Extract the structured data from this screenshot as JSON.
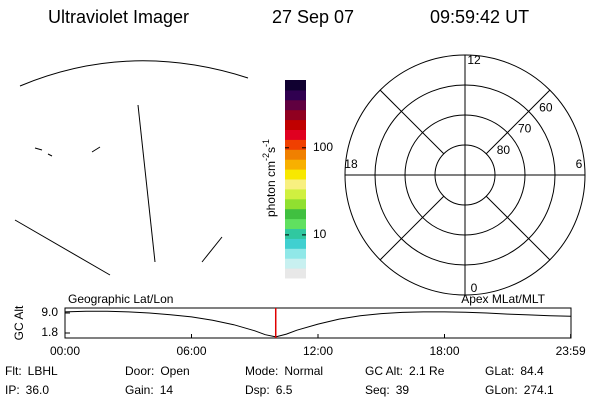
{
  "header": {
    "title": "Ultraviolet Imager",
    "date": "27 Sep 07",
    "time": "09:59:42 UT"
  },
  "chart_data": [
    {
      "type": "colorbar",
      "colors": [
        "#e8e8e8",
        "#c8f0f0",
        "#90e8e8",
        "#40d0d0",
        "#30c8a0",
        "#60e060",
        "#40c040",
        "#90e030",
        "#d0f040",
        "#f8f080",
        "#f8e800",
        "#f8b000",
        "#f08000",
        "#f04000",
        "#e00020",
        "#c00000",
        "#900020",
        "#600040",
        "#300050",
        "#100030"
      ],
      "log_scale": true,
      "ylim": [
        3.2,
        600
      ],
      "yticks": [
        10,
        100
      ],
      "ylabel": {
        "base": "photon cm",
        "exp1": "-2",
        "unit2": "s",
        "exp2": "-1"
      }
    },
    {
      "type": "polar",
      "rlim": [
        90,
        50
      ],
      "rticks": [
        80,
        70,
        60
      ],
      "theta_ticks": [
        0,
        6,
        12,
        18
      ]
    },
    {
      "type": "line",
      "left_label": "Geographic Lat/Lon",
      "right_label": "Apex MLat/MLT",
      "ylabel": "GC Alt",
      "x": [
        0,
        1,
        2,
        3,
        4,
        5,
        6,
        7,
        8,
        9,
        9.5,
        10,
        10.5,
        11,
        12,
        13,
        14,
        15,
        16,
        17,
        18,
        19,
        20,
        21,
        22,
        23,
        24
      ],
      "values": [
        9.4,
        9.6,
        9.6,
        9.4,
        9.0,
        8.4,
        7.6,
        6.4,
        4.8,
        2.6,
        1.2,
        0.4,
        1.4,
        2.8,
        5.0,
        6.8,
        8.0,
        8.8,
        9.2,
        9.4,
        9.4,
        9.3,
        9.0,
        8.6,
        8.3,
        8.0,
        7.8
      ],
      "color": "#000000",
      "xlim": [
        0,
        24
      ],
      "xticks": [
        {
          "value": 0,
          "label": "00:00"
        },
        {
          "value": 6,
          "label": "06:00"
        },
        {
          "value": 12,
          "label": "12:00"
        },
        {
          "value": 18,
          "label": "18:00"
        },
        {
          "value": 23.983,
          "label": "23:59"
        }
      ],
      "ylim": [
        0,
        10.8
      ],
      "yticks": [
        1.8,
        {
          "value": 9,
          "label": "9.0"
        }
      ],
      "marker_x": 9.995,
      "marker_color": "#e00000"
    }
  ],
  "footer": {
    "rows": [
      [
        {
          "label": "Flt:",
          "value": "LBHL"
        },
        {
          "label": "Door:",
          "value": "Open"
        },
        {
          "label": "Mode:",
          "value": "Normal"
        },
        {
          "label": "GC Alt:",
          "value": "2.1 Re"
        },
        {
          "label": "GLat:",
          "value": "84.4"
        }
      ],
      [
        {
          "label": "IP:",
          "value": "36.0"
        },
        {
          "label": "Gain:",
          "value": "14"
        },
        {
          "label": "Dsp:",
          "value": "6.5"
        },
        {
          "label": "Seq:",
          "value": "39"
        },
        {
          "label": "GLon:",
          "value": "274.1"
        }
      ]
    ]
  }
}
